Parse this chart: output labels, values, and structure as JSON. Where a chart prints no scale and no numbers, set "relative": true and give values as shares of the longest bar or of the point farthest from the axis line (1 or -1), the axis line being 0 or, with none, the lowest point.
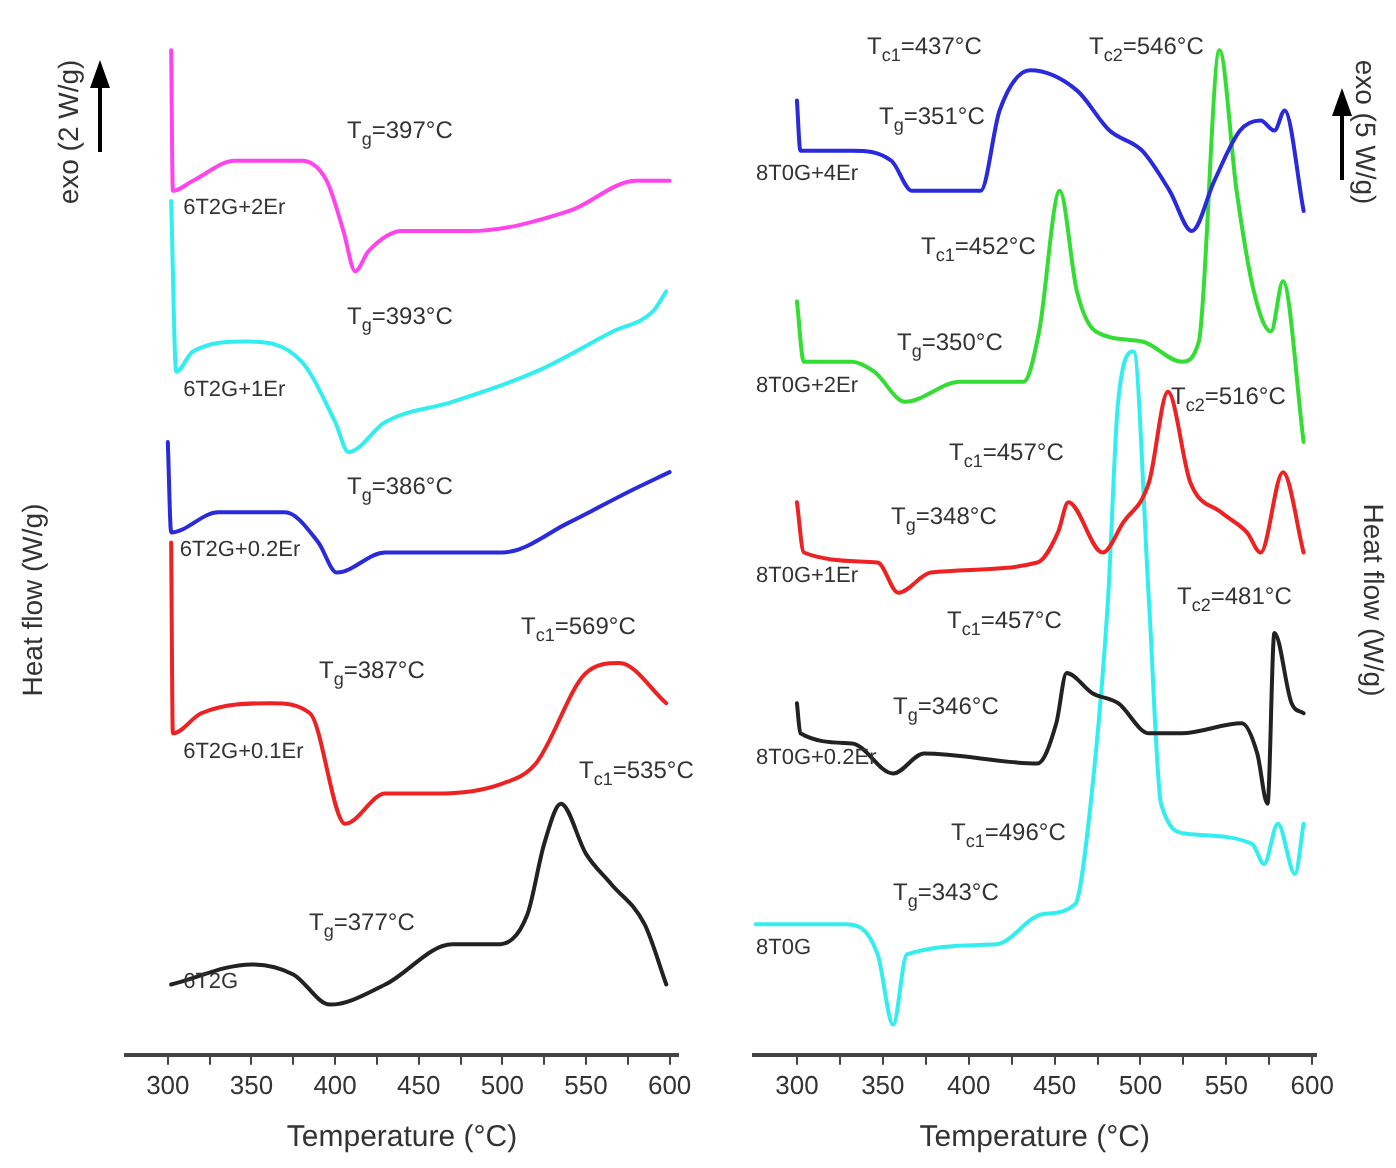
{
  "chart_data": [
    {
      "type": "line",
      "relative": true,
      "xlabel": "Temperature (°C)",
      "ylabel": "Heat flow (W/g)",
      "xlim": [
        275,
        605
      ],
      "xticks": [
        300,
        {
          "value": 325,
          "label": null
        },
        350,
        {
          "value": 375,
          "label": null
        },
        400,
        {
          "value": 425,
          "label": null
        },
        450,
        {
          "value": 475,
          "label": null
        },
        500,
        {
          "value": 525,
          "label": null
        },
        550,
        {
          "value": 575,
          "label": null
        },
        600
      ],
      "tick_labels": "x",
      "legend": false,
      "marker": "none",
      "line_style": "solid",
      "series": [
        {
          "name": "6T2G+2Er",
          "color": "#ff44ee",
          "x": [
            302,
            303,
            315,
            340,
            380,
            395,
            405,
            412,
            420,
            440,
            480,
            540,
            580,
            600
          ],
          "values": [
            1.0,
            0.86,
            0.87,
            0.89,
            0.89,
            0.87,
            0.82,
            0.78,
            0.8,
            0.82,
            0.82,
            0.84,
            0.87,
            0.87
          ]
        },
        {
          "name": "6T2G+1Er",
          "color": "#33eeee",
          "x": [
            302,
            305,
            315,
            347,
            380,
            400,
            408,
            430,
            470,
            520,
            566,
            590,
            598
          ],
          "values": [
            0.85,
            0.68,
            0.7,
            0.71,
            0.69,
            0.63,
            0.6,
            0.63,
            0.65,
            0.68,
            0.72,
            0.74,
            0.76
          ]
        },
        {
          "name": "6T2G+0.2Er",
          "color": "#2a2add",
          "x": [
            300,
            302,
            330,
            370,
            390,
            401,
            430,
            500,
            540,
            575,
            600
          ],
          "values": [
            0.61,
            0.52,
            0.54,
            0.54,
            0.51,
            0.48,
            0.5,
            0.5,
            0.53,
            0.56,
            0.58
          ]
        },
        {
          "name": "6T2G+0.1Er",
          "color": "#ee2222",
          "x": [
            302,
            303,
            320,
            362,
            385,
            406,
            430,
            460,
            500,
            520,
            550,
            570,
            598
          ],
          "values": [
            0.51,
            0.32,
            0.34,
            0.35,
            0.34,
            0.23,
            0.26,
            0.26,
            0.27,
            0.29,
            0.38,
            0.39,
            0.35
          ]
        },
        {
          "name": "6T2G",
          "color": "#222222",
          "x": [
            302,
            350,
            375,
            397,
            430,
            470,
            497,
            515,
            525,
            535,
            550,
            565,
            585,
            598
          ],
          "values": [
            0.07,
            0.09,
            0.08,
            0.05,
            0.07,
            0.11,
            0.11,
            0.14,
            0.21,
            0.25,
            0.2,
            0.17,
            0.13,
            0.07
          ]
        }
      ],
      "annotations": [
        "exo (2 W/g)",
        "T$_{g}$=397°C",
        "T$_{g}$=393°C",
        "T$_{g}$=386°C",
        "T$_{c1}$=569°C",
        "T$_{g}$=387°C",
        "T$_{c1}$=535°C",
        "T$_{g}$=377°C"
      ]
    },
    {
      "type": "line",
      "relative": true,
      "xlabel": "Temperature (°C)",
      "ylabel": "Heat flow (W/g)",
      "xlim": [
        275,
        602
      ],
      "xticks": [
        300,
        {
          "value": 325,
          "label": null
        },
        350,
        {
          "value": 375,
          "label": null
        },
        400,
        {
          "value": 425,
          "label": null
        },
        450,
        {
          "value": 475,
          "label": null
        },
        500,
        {
          "value": 525,
          "label": null
        },
        550,
        {
          "value": 575,
          "label": null
        },
        600
      ],
      "tick_labels": "x",
      "legend": false,
      "marker": "none",
      "line_style": "solid",
      "series": [
        {
          "name": "8T0G+4Er",
          "color": "#2a2add",
          "x": [
            300,
            302,
            332,
            355,
            367,
            407,
            418,
            436,
            463,
            482,
            501,
            517,
            530,
            543,
            558,
            570,
            578,
            584,
            595
          ],
          "values": [
            0.95,
            0.9,
            0.9,
            0.89,
            0.86,
            0.86,
            0.94,
            0.98,
            0.96,
            0.92,
            0.9,
            0.86,
            0.82,
            0.87,
            0.92,
            0.93,
            0.92,
            0.94,
            0.84
          ]
        },
        {
          "name": "8T0G+2Er",
          "color": "#33dd33",
          "x": [
            300,
            304,
            332,
            345,
            363,
            395,
            432,
            441,
            453,
            463,
            474,
            501,
            524,
            534,
            546,
            556,
            566,
            576,
            583,
            595
          ],
          "values": [
            0.75,
            0.69,
            0.69,
            0.68,
            0.65,
            0.67,
            0.67,
            0.72,
            0.86,
            0.76,
            0.72,
            0.71,
            0.69,
            0.71,
            1.0,
            0.86,
            0.76,
            0.72,
            0.77,
            0.61
          ]
        },
        {
          "name": "8T0G+1Er",
          "color": "#ee2222",
          "x": [
            300,
            304,
            347,
            359,
            378,
            440,
            452,
            458,
            478,
            490,
            505,
            516,
            529,
            547,
            562,
            570,
            583,
            595
          ],
          "values": [
            0.55,
            0.5,
            0.49,
            0.46,
            0.48,
            0.49,
            0.52,
            0.55,
            0.5,
            0.53,
            0.57,
            0.66,
            0.57,
            0.54,
            0.52,
            0.5,
            0.58,
            0.5
          ]
        },
        {
          "name": "8T0G+0.2Er",
          "color": "#222222",
          "x": [
            300,
            302,
            332,
            356,
            374,
            440,
            451,
            457,
            472,
            487,
            505,
            524,
            559,
            568,
            574,
            578,
            588,
            595
          ],
          "values": [
            0.35,
            0.32,
            0.31,
            0.28,
            0.3,
            0.29,
            0.33,
            0.38,
            0.36,
            0.35,
            0.32,
            0.32,
            0.33,
            0.3,
            0.25,
            0.42,
            0.35,
            0.34
          ]
        },
        {
          "name": "8T0G",
          "color": "#33eeee",
          "x": [
            276,
            328,
            347,
            356,
            364,
            416,
            443,
            462,
            471,
            481,
            487,
            496,
            505,
            512,
            527,
            565,
            572,
            580,
            590,
            595
          ],
          "values": [
            0.13,
            0.13,
            0.1,
            0.03,
            0.1,
            0.11,
            0.14,
            0.15,
            0.25,
            0.45,
            0.65,
            0.7,
            0.45,
            0.25,
            0.22,
            0.21,
            0.19,
            0.23,
            0.18,
            0.23
          ]
        }
      ],
      "annotations": [
        "exo (5 W/g)",
        "T$_{c1}$=437°C",
        "T$_{c2}$=546°C",
        "T$_{g}$=351°C",
        "T$_{c1}$=452°C",
        "T$_{g}$=350°C",
        "T$_{c2}$=516°C",
        "T$_{c1}$=457°C",
        "T$_{g}$=348°C",
        "T$_{c2}$=481°C",
        "T$_{c1}$=457°C",
        "T$_{g}$=346°C",
        "T$_{c1}$=496°C",
        "T$_{g}$=343°C"
      ]
    }
  ]
}
